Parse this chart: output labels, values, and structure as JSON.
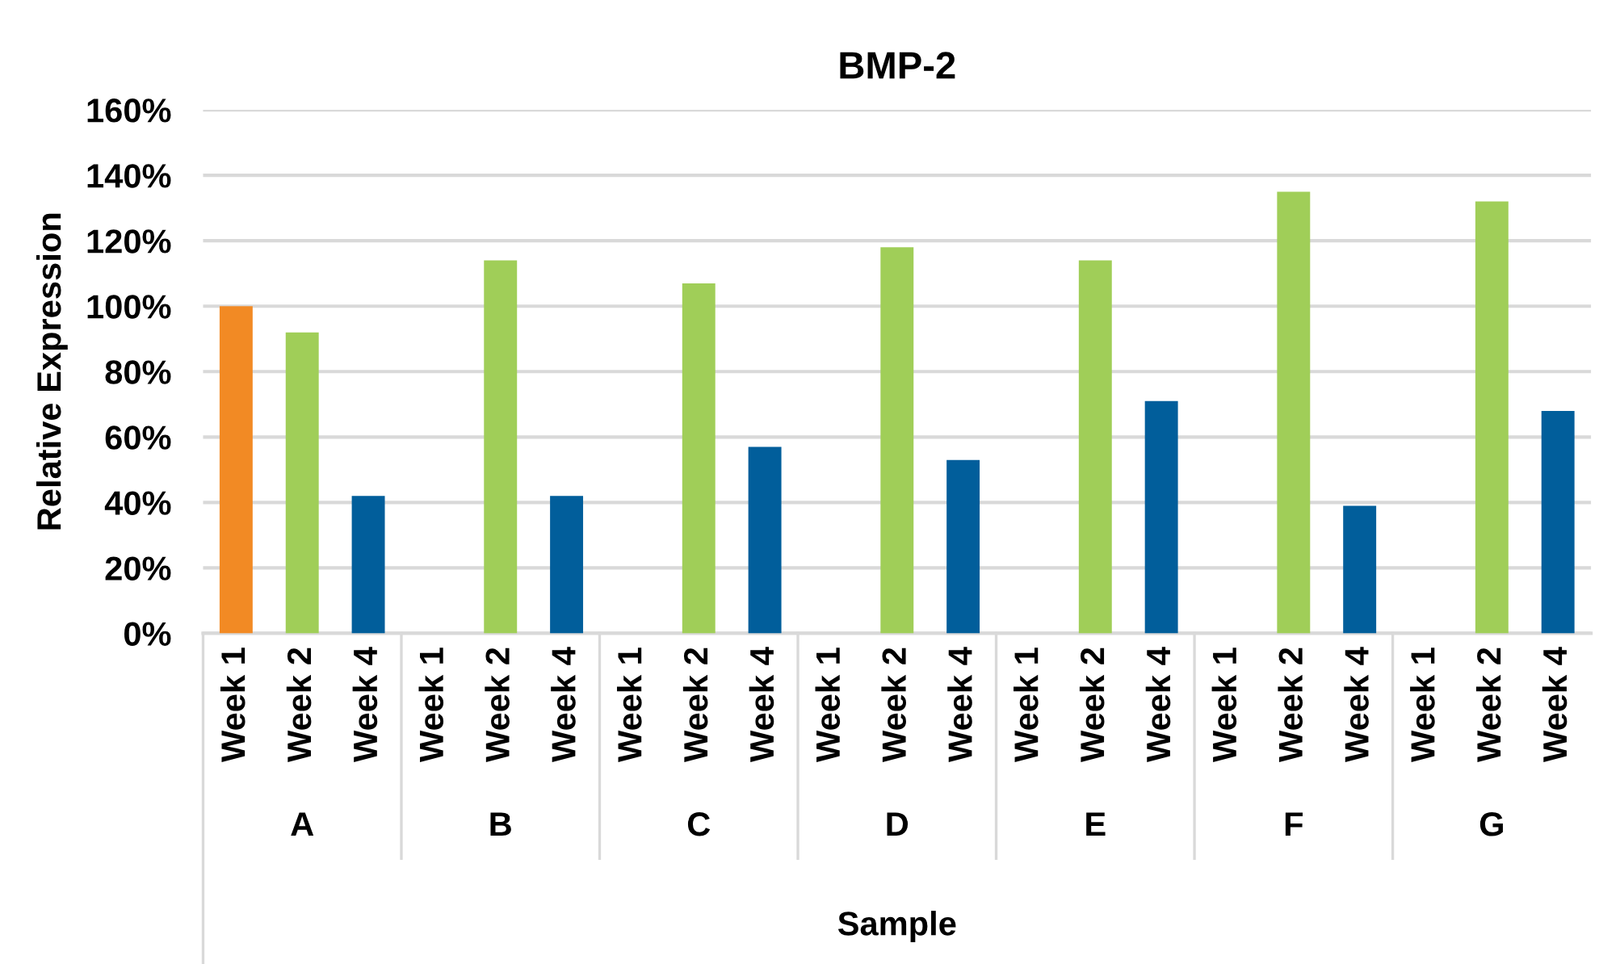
{
  "chart_data": {
    "type": "bar",
    "title": "BMP-2",
    "xlabel": "Sample",
    "ylabel": "Relative Expression",
    "categories": [
      "Week 1",
      "Week 2",
      "Week 4",
      "Week 1",
      "Week 2",
      "Week 4",
      "Week 1",
      "Week 2",
      "Week 4",
      "Week 1",
      "Week 2",
      "Week 4",
      "Week 1",
      "Week 2",
      "Week 4",
      "Week 1",
      "Week 2",
      "Week 4",
      "Week 1",
      "Week 2",
      "Week 4"
    ],
    "values": [
      100,
      92,
      42,
      null,
      114,
      42,
      null,
      107,
      57,
      null,
      118,
      53,
      null,
      114,
      71,
      null,
      135,
      39,
      null,
      132,
      68
    ],
    "colors": [
      "#f28a24",
      "#a0ce58",
      "#015e9b",
      "#f28a24",
      "#a0ce58",
      "#015e9b",
      "#f28a24",
      "#a0ce58",
      "#015e9b",
      "#f28a24",
      "#a0ce58",
      "#015e9b",
      "#f28a24",
      "#a0ce58",
      "#015e9b",
      "#f28a24",
      "#a0ce58",
      "#015e9b",
      "#f28a24",
      "#a0ce58",
      "#015e9b"
    ],
    "ylim": [
      0,
      160
    ],
    "yticks": [
      {
        "value": 0,
        "label": "0%"
      },
      {
        "value": 20,
        "label": "20%"
      },
      {
        "value": 40,
        "label": "40%"
      },
      {
        "value": 60,
        "label": "60%"
      },
      {
        "value": 80,
        "label": "80%"
      },
      {
        "value": 100,
        "label": "100%"
      },
      {
        "value": 120,
        "label": "120%"
      },
      {
        "value": 140,
        "label": "140%"
      },
      {
        "value": 160,
        "label": "160%"
      }
    ],
    "grid": "y",
    "annotations": [
      "A",
      "B",
      "C",
      "D",
      "E",
      "F",
      "G"
    ]
  }
}
